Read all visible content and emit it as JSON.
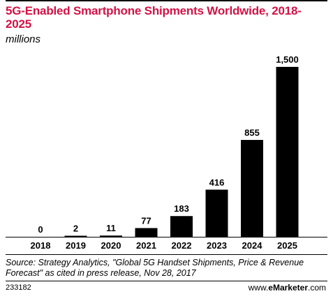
{
  "header": {
    "title": "5G-Enabled Smartphone Shipments Worldwide, 2018-2025",
    "subtitle": "millions"
  },
  "chart_data": {
    "type": "bar",
    "title": "5G-Enabled Smartphone Shipments Worldwide, 2018-2025",
    "subtitle": "millions",
    "xlabel": "",
    "ylabel": "",
    "categories": [
      "2018",
      "2019",
      "2020",
      "2021",
      "2022",
      "2023",
      "2024",
      "2025"
    ],
    "values": [
      0,
      2,
      11,
      77,
      183,
      416,
      855,
      1500
    ],
    "data_labels": [
      "0",
      "2",
      "11",
      "77",
      "183",
      "416",
      "855",
      "1,500"
    ],
    "ylim": [
      0,
      1500
    ],
    "grid": false,
    "legend": "none",
    "bar_color": "#000000"
  },
  "footer": {
    "source": "Source: Strategy Analytics, \"Global 5G Handset Shipments, Price & Revenue Forecast\" as cited in press release, Nov 28, 2017",
    "chart_id": "233182",
    "brand_prefix": "www.",
    "brand_name": "eMarketer",
    "brand_suffix": ".com"
  },
  "colors": {
    "title": "#d31245",
    "bars": "#000000",
    "text": "#000000"
  }
}
